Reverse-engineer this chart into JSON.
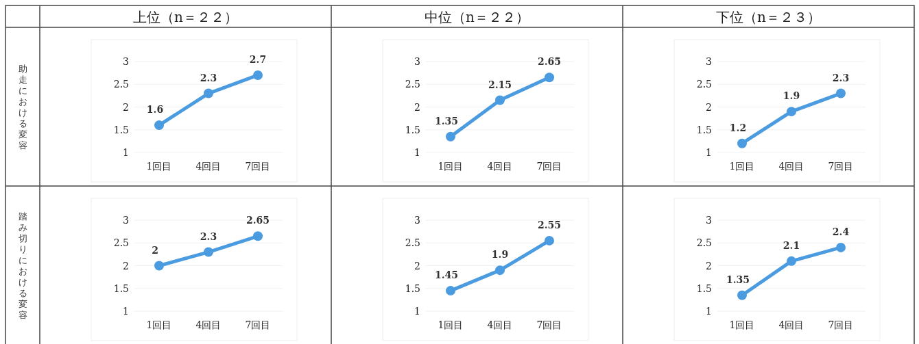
{
  "chart_data": [
    {
      "type": "line",
      "title": "上位（n＝２２）",
      "ylabel": "助走における変容",
      "categories": [
        "1回目",
        "4回目",
        "7回目"
      ],
      "values": [
        1.6,
        2.3,
        2.7
      ],
      "color": "#4a9be0",
      "ylim": [
        1,
        3
      ],
      "yticks": [
        1,
        1.5,
        2,
        2.5,
        3
      ],
      "data_labels": true,
      "marker": "circle",
      "grid": "y"
    },
    {
      "type": "line",
      "title": "中位（n＝２２）",
      "categories": [
        "1回目",
        "4回目",
        "7回目"
      ],
      "values": [
        1.35,
        2.15,
        2.65
      ],
      "color": "#4a9be0",
      "ylim": [
        1,
        3
      ],
      "yticks": [
        1,
        1.5,
        2,
        2.5,
        3
      ],
      "data_labels": true,
      "marker": "circle",
      "grid": "y"
    },
    {
      "type": "line",
      "title": "下位（n＝２３）",
      "categories": [
        "1回目",
        "4回目",
        "7回目"
      ],
      "values": [
        1.2,
        1.9,
        2.3
      ],
      "color": "#4a9be0",
      "ylim": [
        1,
        3
      ],
      "yticks": [
        1,
        1.5,
        2,
        2.5,
        3
      ],
      "data_labels": true,
      "marker": "circle",
      "grid": "y"
    },
    {
      "type": "line",
      "ylabel": "踏み切りにおける変容",
      "categories": [
        "1回目",
        "4回目",
        "7回目"
      ],
      "values": [
        2,
        2.3,
        2.65
      ],
      "color": "#4a9be0",
      "ylim": [
        1,
        3
      ],
      "yticks": [
        1,
        1.5,
        2,
        2.5,
        3
      ],
      "data_labels": true,
      "marker": "circle",
      "grid": "y"
    },
    {
      "type": "line",
      "categories": [
        "1回目",
        "4回目",
        "7回目"
      ],
      "values": [
        1.45,
        1.9,
        2.55
      ],
      "color": "#4a9be0",
      "ylim": [
        1,
        3
      ],
      "yticks": [
        1,
        1.5,
        2,
        2.5,
        3
      ],
      "data_labels": true,
      "marker": "circle",
      "grid": "y"
    },
    {
      "type": "line",
      "categories": [
        "1回目",
        "4回目",
        "7回目"
      ],
      "values": [
        1.35,
        2.1,
        2.4
      ],
      "color": "#4a9be0",
      "ylim": [
        1,
        3
      ],
      "yticks": [
        1,
        1.5,
        2,
        2.5,
        3
      ],
      "data_labels": true,
      "marker": "circle",
      "grid": "y"
    }
  ]
}
